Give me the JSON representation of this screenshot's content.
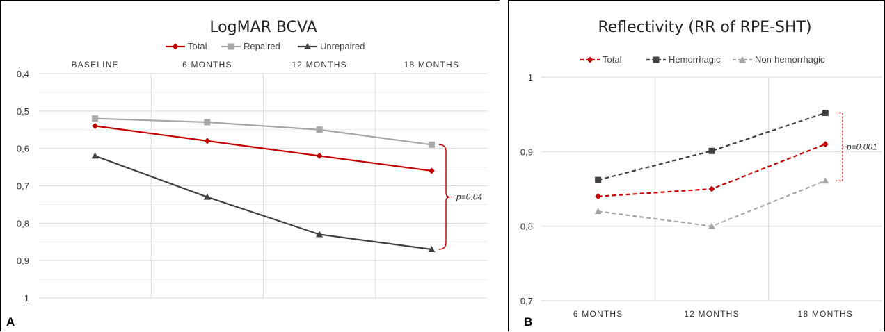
{
  "chart_data": [
    {
      "panel_label": "A",
      "type": "line",
      "title": "LogMAR BCVA",
      "categories": [
        "BASELINE",
        "6 MONTHS",
        "12 MONTHS",
        "18 MONTHS"
      ],
      "x_axis_position": "top",
      "y_inverted": true,
      "ylim": [
        0.4,
        1.0
      ],
      "yticks": [
        "0,4",
        "0,5",
        "0,6",
        "0,7",
        "0,8",
        "0,9",
        "1"
      ],
      "grid": true,
      "legend_position": "top",
      "series": [
        {
          "name": "Total",
          "values": [
            0.54,
            0.58,
            0.62,
            0.66
          ],
          "color": "#c00000",
          "marker": "diamond",
          "dashed": false
        },
        {
          "name": "Repaired",
          "values": [
            0.52,
            0.53,
            0.55,
            0.59
          ],
          "color": "#a6a6a6",
          "marker": "square",
          "dashed": false
        },
        {
          "name": "Unrepaired",
          "values": [
            0.62,
            0.73,
            0.83,
            0.87
          ],
          "color": "#404040",
          "marker": "triangle",
          "dashed": false
        }
      ],
      "annotation": {
        "text": "p=0.04",
        "between": [
          "Repaired",
          "Unrepaired"
        ],
        "at": "18 MONTHS"
      }
    },
    {
      "panel_label": "B",
      "type": "line",
      "title": "Reflectivity (RR of RPE-SHT)",
      "categories": [
        "6 MONTHS",
        "12 MONTHS",
        "18 MONTHS"
      ],
      "x_axis_position": "bottom",
      "y_inverted": false,
      "ylim": [
        0.7,
        1.0
      ],
      "yticks": [
        "0,7",
        "0,8",
        "0,9",
        "1"
      ],
      "grid": true,
      "legend_position": "top",
      "series": [
        {
          "name": "Total",
          "values": [
            0.84,
            0.85,
            0.91
          ],
          "color": "#c00000",
          "marker": "diamond",
          "dashed": true
        },
        {
          "name": "Hemorrhagic",
          "values": [
            0.862,
            0.901,
            0.952
          ],
          "color": "#404040",
          "marker": "square",
          "dashed": true
        },
        {
          "name": "Non-hemorrhagic",
          "values": [
            0.82,
            0.8,
            0.861
          ],
          "color": "#a6a6a6",
          "marker": "triangle",
          "dashed": true
        }
      ],
      "annotation": {
        "text": "p=0.001",
        "between": [
          "Hemorrhagic",
          "Non-hemorrhagic"
        ],
        "at": "18 MONTHS"
      }
    }
  ]
}
